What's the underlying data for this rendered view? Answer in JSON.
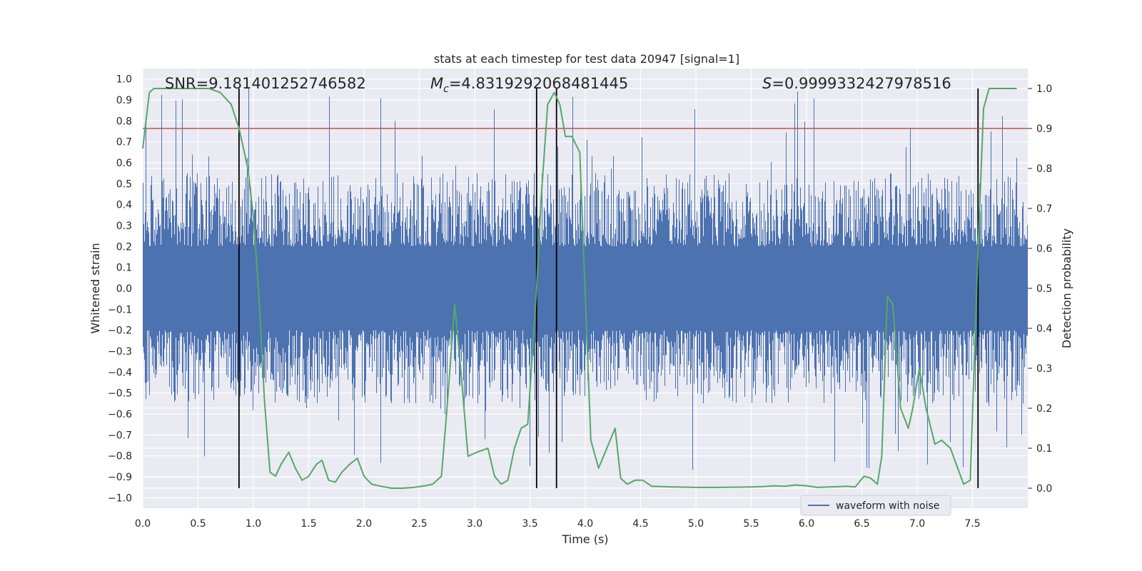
{
  "chart_data": {
    "type": "line",
    "title": "stats at each timestep for test data 20947 [signal=1]",
    "xlabel": "Time (s)",
    "ylabel_left": "Whitened strain",
    "ylabel_right": "Detection probability",
    "xlim": [
      0.0,
      8.0
    ],
    "ylim_left": [
      -1.05,
      1.05
    ],
    "ylim_right": [
      -0.05,
      1.05
    ],
    "x_ticks": [
      "0.0",
      "0.5",
      "1.0",
      "1.5",
      "2.0",
      "2.5",
      "3.0",
      "3.5",
      "4.0",
      "4.5",
      "5.0",
      "5.5",
      "6.0",
      "6.5",
      "7.0",
      "7.5"
    ],
    "y_ticks_left": [
      "1.0",
      "0.9",
      "0.8",
      "0.7",
      "0.6",
      "0.5",
      "0.4",
      "0.3",
      "0.2",
      "0.1",
      "0.0",
      "−0.1",
      "−0.2",
      "−0.3",
      "−0.4",
      "−0.5",
      "−0.6",
      "−0.7",
      "−0.8",
      "−0.9",
      "−1.0"
    ],
    "y_ticks_right": [
      "0.0",
      "0.1",
      "0.2",
      "0.3",
      "0.4",
      "0.5",
      "0.6",
      "0.7",
      "0.8",
      "0.9",
      "1.0"
    ],
    "annotations": {
      "snr": "SNR=9.181401252746582",
      "mc_symbol": "M",
      "mc_sub": "c",
      "mc_value": "=4.8319292068481445",
      "s_symbol": "S",
      "s_value": "=0.9999332427978516"
    },
    "legend": {
      "label": "waveform with noise",
      "placement": "lower-right"
    },
    "threshold_right": 0.9,
    "vertical_lines_x": [
      0.87,
      3.56,
      3.74,
      7.55
    ],
    "series": [
      {
        "name": "waveform with noise",
        "color": "#4c72b0",
        "kind": "noise-envelope",
        "core_upper": 0.2,
        "core_lower": -0.2,
        "envelope_upper": 0.55,
        "envelope_lower": -0.55,
        "spike_max": 0.97,
        "spike_min": -0.87
      },
      {
        "name": "detection probability",
        "color": "#55a868",
        "axis": "right",
        "x": [
          0.0,
          0.06,
          0.1,
          0.2,
          0.4,
          0.6,
          0.7,
          0.8,
          0.87,
          0.95,
          1.0,
          1.05,
          1.1,
          1.15,
          1.2,
          1.25,
          1.32,
          1.38,
          1.44,
          1.5,
          1.57,
          1.62,
          1.68,
          1.74,
          1.8,
          1.87,
          1.94,
          2.0,
          2.07,
          2.15,
          2.25,
          2.35,
          2.45,
          2.55,
          2.62,
          2.7,
          2.75,
          2.82,
          2.88,
          2.94,
          3.02,
          3.12,
          3.18,
          3.24,
          3.3,
          3.36,
          3.42,
          3.48,
          3.56,
          3.6,
          3.66,
          3.72,
          3.77,
          3.82,
          3.88,
          3.95,
          4.05,
          4.12,
          4.18,
          4.27,
          4.32,
          4.38,
          4.45,
          4.52,
          4.6,
          4.8,
          5.0,
          5.2,
          5.5,
          5.6,
          5.7,
          5.8,
          5.9,
          6.0,
          6.1,
          6.2,
          6.3,
          6.36,
          6.44,
          6.52,
          6.58,
          6.64,
          6.68,
          6.73,
          6.78,
          6.85,
          6.92,
          6.96,
          7.02,
          7.08,
          7.16,
          7.22,
          7.3,
          7.38,
          7.42,
          7.48,
          7.55,
          7.6,
          7.65,
          7.75,
          7.9
        ],
        "values": [
          0.85,
          0.99,
          1.0,
          1.0,
          1.0,
          1.0,
          0.99,
          0.96,
          0.9,
          0.8,
          0.68,
          0.48,
          0.22,
          0.04,
          0.03,
          0.06,
          0.09,
          0.05,
          0.02,
          0.03,
          0.06,
          0.07,
          0.02,
          0.015,
          0.04,
          0.06,
          0.075,
          0.03,
          0.01,
          0.005,
          0.0,
          0.0,
          0.002,
          0.006,
          0.01,
          0.03,
          0.2,
          0.46,
          0.28,
          0.08,
          0.09,
          0.1,
          0.03,
          0.01,
          0.02,
          0.1,
          0.15,
          0.16,
          0.5,
          0.72,
          0.96,
          0.99,
          0.96,
          0.88,
          0.88,
          0.84,
          0.12,
          0.05,
          0.09,
          0.15,
          0.025,
          0.01,
          0.02,
          0.02,
          0.005,
          0.003,
          0.002,
          0.002,
          0.003,
          0.004,
          0.006,
          0.005,
          0.008,
          0.006,
          0.002,
          0.003,
          0.004,
          0.005,
          0.003,
          0.03,
          0.025,
          0.01,
          0.08,
          0.48,
          0.46,
          0.2,
          0.15,
          0.2,
          0.3,
          0.2,
          0.11,
          0.12,
          0.1,
          0.04,
          0.01,
          0.02,
          0.6,
          0.95,
          1.0,
          1.0,
          1.0
        ]
      }
    ]
  }
}
